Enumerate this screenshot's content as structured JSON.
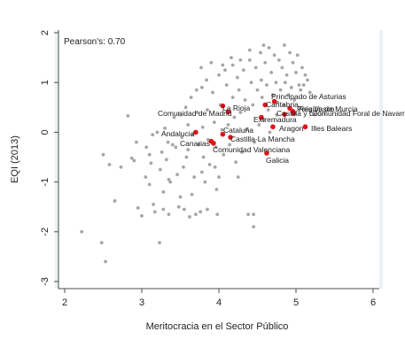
{
  "chart_data": {
    "type": "scatter",
    "xlabel": "Meritocracia en el Sector Público",
    "ylabel": "EQI (2013)",
    "xlim": [
      2,
      6
    ],
    "ylim": [
      -3,
      2
    ],
    "xticks": [
      "2",
      "3",
      "4",
      "5",
      "6"
    ],
    "yticks": [
      "-3",
      "-2",
      "-1",
      "0",
      "1",
      "2"
    ],
    "grid": false,
    "annotation": "Pearson's: 0.70",
    "colors": {
      "background_points": "#a6a6a6",
      "highlight_points": "#e0151b",
      "plot_bg": "#eaf2f3",
      "axis": "#4d4d4d"
    },
    "series": [
      {
        "points": [
          [
            2.22,
            -2.0
          ],
          [
            2.48,
            -2.22
          ],
          [
            2.53,
            -2.6
          ],
          [
            2.5,
            -0.45
          ],
          [
            2.58,
            -0.65
          ],
          [
            2.65,
            -1.38
          ],
          [
            2.73,
            -0.7
          ],
          [
            2.82,
            0.33
          ],
          [
            2.87,
            -0.52
          ],
          [
            2.9,
            -0.57
          ],
          [
            2.93,
            -0.2
          ],
          [
            2.95,
            -1.52
          ],
          [
            3.0,
            -1.68
          ],
          [
            3.05,
            -0.9
          ],
          [
            3.06,
            -0.3
          ],
          [
            3.1,
            -0.45
          ],
          [
            3.12,
            -0.62
          ],
          [
            3.14,
            -0.05
          ],
          [
            3.15,
            -1.45
          ],
          [
            3.17,
            -1.6
          ],
          [
            3.2,
            0.0
          ],
          [
            3.23,
            -2.22
          ],
          [
            3.24,
            -0.75
          ],
          [
            3.26,
            -0.4
          ],
          [
            3.28,
            -1.55
          ],
          [
            3.3,
            0.08
          ],
          [
            3.32,
            -0.55
          ],
          [
            3.34,
            -0.2
          ],
          [
            3.35,
            -1.65
          ],
          [
            3.37,
            -1.0
          ],
          [
            3.4,
            -0.25
          ],
          [
            3.42,
            0.3
          ],
          [
            3.44,
            -0.3
          ],
          [
            3.46,
            -0.85
          ],
          [
            3.48,
            -1.5
          ],
          [
            3.5,
            0.35
          ],
          [
            3.52,
            -0.1
          ],
          [
            3.54,
            -0.7
          ],
          [
            3.55,
            -1.55
          ],
          [
            3.57,
            0.5
          ],
          [
            3.6,
            0.15
          ],
          [
            3.6,
            -0.35
          ],
          [
            3.62,
            -1.7
          ],
          [
            3.64,
            0.7
          ],
          [
            3.66,
            -0.05
          ],
          [
            3.68,
            -0.9
          ],
          [
            3.7,
            -1.65
          ],
          [
            3.71,
            0.85
          ],
          [
            3.72,
            0.4
          ],
          [
            3.74,
            -0.25
          ],
          [
            3.76,
            -1.6
          ],
          [
            3.77,
            1.3
          ],
          [
            3.78,
            0.9
          ],
          [
            3.79,
            0.1
          ],
          [
            3.8,
            -0.5
          ],
          [
            3.82,
            -1.0
          ],
          [
            3.84,
            1.05
          ],
          [
            3.85,
            0.45
          ],
          [
            3.86,
            -0.15
          ],
          [
            3.88,
            -0.65
          ],
          [
            3.9,
            1.4
          ],
          [
            3.92,
            0.8
          ],
          [
            3.94,
            0.2
          ],
          [
            3.96,
            -0.3
          ],
          [
            3.97,
            -1.15
          ],
          [
            3.98,
            -1.65
          ],
          [
            4.0,
            1.15
          ],
          [
            4.02,
            0.55
          ],
          [
            4.04,
            0.05
          ],
          [
            4.06,
            -0.45
          ],
          [
            4.08,
            1.25
          ],
          [
            4.1,
            0.95
          ],
          [
            4.12,
            0.15
          ],
          [
            4.14,
            -0.25
          ],
          [
            4.16,
            1.5
          ],
          [
            4.18,
            0.7
          ],
          [
            4.2,
            0.3
          ],
          [
            4.22,
            -0.6
          ],
          [
            4.24,
            1.1
          ],
          [
            4.26,
            0.85
          ],
          [
            4.28,
            0.4
          ],
          [
            4.3,
            -0.4
          ],
          [
            4.32,
            1.25
          ],
          [
            4.34,
            0.65
          ],
          [
            4.36,
            0.05
          ],
          [
            4.38,
            -1.65
          ],
          [
            4.4,
            1.45
          ],
          [
            4.42,
            1.0
          ],
          [
            4.44,
            0.55
          ],
          [
            4.45,
            -1.9
          ],
          [
            4.46,
            -0.2
          ],
          [
            4.48,
            1.3
          ],
          [
            4.5,
            0.85
          ],
          [
            4.52,
            0.15
          ],
          [
            4.54,
            1.6
          ],
          [
            4.55,
            1.05
          ],
          [
            4.56,
            0.7
          ],
          [
            4.58,
            0.25
          ],
          [
            4.6,
            1.4
          ],
          [
            4.62,
            0.95
          ],
          [
            4.64,
            0.45
          ],
          [
            4.65,
            1.7
          ],
          [
            4.66,
            0.0
          ],
          [
            4.68,
            1.2
          ],
          [
            4.7,
            0.75
          ],
          [
            4.72,
            1.55
          ],
          [
            4.74,
            1.0
          ],
          [
            4.75,
            0.35
          ],
          [
            4.76,
            0.6
          ],
          [
            4.78,
            1.45
          ],
          [
            4.8,
            0.85
          ],
          [
            4.82,
            1.3
          ],
          [
            4.84,
            0.55
          ],
          [
            4.85,
            1.75
          ],
          [
            4.86,
            1.0
          ],
          [
            4.88,
            1.15
          ],
          [
            4.9,
            0.75
          ],
          [
            4.92,
            1.6
          ],
          [
            4.94,
            0.9
          ],
          [
            4.96,
            1.4
          ],
          [
            4.98,
            0.65
          ],
          [
            5.0,
            1.2
          ],
          [
            5.02,
            1.55
          ],
          [
            5.04,
            0.95
          ],
          [
            5.06,
            0.85
          ],
          [
            5.08,
            1.3
          ],
          [
            5.1,
            0.95
          ],
          [
            5.12,
            1.15
          ],
          [
            5.15,
            1.05
          ],
          [
            5.18,
            0.8
          ],
          [
            4.4,
            1.65
          ],
          [
            4.58,
            1.75
          ],
          [
            4.28,
            1.45
          ],
          [
            4.18,
            1.35
          ],
          [
            4.05,
            1.35
          ],
          [
            3.95,
            -0.7
          ],
          [
            3.58,
            -0.5
          ],
          [
            3.35,
            -0.95
          ],
          [
            3.78,
            -0.8
          ],
          [
            3.65,
            -1.25
          ],
          [
            3.5,
            -1.3
          ],
          [
            3.28,
            -1.2
          ],
          [
            4.25,
            -0.9
          ],
          [
            4.45,
            -1.65
          ],
          [
            4.0,
            -0.9
          ],
          [
            3.1,
            -1.05
          ],
          [
            3.85,
            -1.55
          ]
        ]
      },
      {
        "points": [
          {
            "label": "Principado de Asturias",
            "x": 4.72,
            "y": 0.62
          },
          {
            "label": "Cantabria",
            "x": 4.6,
            "y": 0.55
          },
          {
            "label": "País Vasco",
            "x": 4.92,
            "y": 0.48
          },
          {
            "label": "Región de Murcia",
            "x": 4.96,
            "y": 0.42
          },
          {
            "label": "Castilla y León",
            "x": 4.85,
            "y": 0.36
          },
          {
            "label": "Comunidad Foral de Navarra",
            "x": 4.97,
            "y": 0.38
          },
          {
            "label": "La Rioja",
            "x": 4.05,
            "y": 0.53
          },
          {
            "label": "Comunidad de Madrid",
            "x": 4.12,
            "y": 0.41
          },
          {
            "label": "Extremadura",
            "x": 4.55,
            "y": 0.3
          },
          {
            "label": "Aragon",
            "x": 4.7,
            "y": 0.11
          },
          {
            "label": "Illes Balears",
            "x": 5.12,
            "y": 0.11
          },
          {
            "label": "Andalucia",
            "x": 3.7,
            "y": 0.0
          },
          {
            "label": "Cataluña",
            "x": 4.05,
            "y": -0.04
          },
          {
            "label": "Castilla-La Mancha",
            "x": 4.15,
            "y": -0.1
          },
          {
            "label": "Canarias",
            "x": 3.9,
            "y": -0.18
          },
          {
            "label": "Comunidad Valenciana",
            "x": 3.93,
            "y": -0.22
          },
          {
            "label": "Galicia",
            "x": 4.62,
            "y": -0.42
          }
        ]
      }
    ]
  }
}
